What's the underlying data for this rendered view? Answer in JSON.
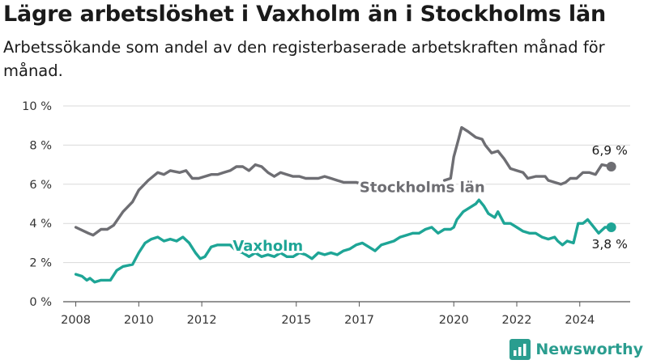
{
  "header": {
    "title": "Lägre arbetslöshet i Vaxholm än i Stockholms län",
    "subtitle": "Arbetssökande som andel av den registerbaserade arbetskraften månad för månad."
  },
  "brand": {
    "name": "Newsworthy",
    "color": "#2a9d8f"
  },
  "chart_data": {
    "type": "line",
    "title": "Lägre arbetslöshet i Vaxholm än i Stockholms län",
    "subtitle": "Arbetssökande som andel av den registerbaserade arbetskraften månad för månad.",
    "xlabel": "",
    "ylabel": "",
    "xlim": [
      2007.6,
      2025.6
    ],
    "ylim": [
      0,
      10
    ],
    "x_ticks": [
      2008,
      2010,
      2012,
      2015,
      2017,
      2020,
      2022,
      2024
    ],
    "y_ticks": [
      0,
      2,
      4,
      6,
      8,
      10
    ],
    "y_tick_labels": [
      "0 %",
      "2 %",
      "4 %",
      "6 %",
      "8 %",
      "10 %"
    ],
    "grid": "horizontal",
    "series": [
      {
        "name": "Stockholms län",
        "color": "#6e6e73",
        "end_label": "6,9 %",
        "points": [
          [
            2008.0,
            3.8
          ],
          [
            2008.4,
            3.5
          ],
          [
            2008.55,
            3.4
          ],
          [
            2008.8,
            3.7
          ],
          [
            2009.0,
            3.7
          ],
          [
            2009.2,
            3.9
          ],
          [
            2009.5,
            4.6
          ],
          [
            2009.8,
            5.1
          ],
          [
            2010.0,
            5.7
          ],
          [
            2010.3,
            6.2
          ],
          [
            2010.6,
            6.6
          ],
          [
            2010.8,
            6.5
          ],
          [
            2011.0,
            6.7
          ],
          [
            2011.3,
            6.6
          ],
          [
            2011.5,
            6.7
          ],
          [
            2011.7,
            6.3
          ],
          [
            2011.9,
            6.3
          ],
          [
            2012.1,
            6.4
          ],
          [
            2012.3,
            6.5
          ],
          [
            2012.5,
            6.5
          ],
          [
            2012.7,
            6.6
          ],
          [
            2012.9,
            6.7
          ],
          [
            2013.1,
            6.9
          ],
          [
            2013.3,
            6.9
          ],
          [
            2013.5,
            6.7
          ],
          [
            2013.7,
            7.0
          ],
          [
            2013.9,
            6.9
          ],
          [
            2014.1,
            6.6
          ],
          [
            2014.3,
            6.4
          ],
          [
            2014.5,
            6.6
          ],
          [
            2014.7,
            6.5
          ],
          [
            2014.9,
            6.4
          ],
          [
            2015.1,
            6.4
          ],
          [
            2015.3,
            6.3
          ],
          [
            2015.5,
            6.3
          ],
          [
            2015.7,
            6.3
          ],
          [
            2015.9,
            6.4
          ],
          [
            2016.1,
            6.3
          ],
          [
            2016.3,
            6.2
          ],
          [
            2016.5,
            6.1
          ],
          [
            2016.7,
            6.1
          ],
          [
            2016.9,
            6.1
          ],
          [
            2017.1,
            6.0
          ],
          [
            2019.7,
            6.2
          ],
          [
            2019.9,
            6.3
          ],
          [
            2020.0,
            7.4
          ],
          [
            2020.15,
            8.3
          ],
          [
            2020.25,
            8.9
          ],
          [
            2020.45,
            8.7
          ],
          [
            2020.7,
            8.4
          ],
          [
            2020.9,
            8.3
          ],
          [
            2021.0,
            8.0
          ],
          [
            2021.2,
            7.6
          ],
          [
            2021.4,
            7.7
          ],
          [
            2021.6,
            7.3
          ],
          [
            2021.8,
            6.8
          ],
          [
            2022.0,
            6.7
          ],
          [
            2022.2,
            6.6
          ],
          [
            2022.35,
            6.3
          ],
          [
            2022.6,
            6.4
          ],
          [
            2022.9,
            6.4
          ],
          [
            2023.0,
            6.2
          ],
          [
            2023.2,
            6.1
          ],
          [
            2023.4,
            6.0
          ],
          [
            2023.55,
            6.1
          ],
          [
            2023.7,
            6.3
          ],
          [
            2023.9,
            6.3
          ],
          [
            2024.1,
            6.6
          ],
          [
            2024.3,
            6.6
          ],
          [
            2024.5,
            6.5
          ],
          [
            2024.7,
            7.0
          ],
          [
            2025.0,
            6.9
          ]
        ]
      },
      {
        "name": "Vaxholm",
        "color": "#1ea596",
        "end_label": "3,8 %",
        "points": [
          [
            2008.0,
            1.4
          ],
          [
            2008.2,
            1.3
          ],
          [
            2008.35,
            1.1
          ],
          [
            2008.45,
            1.2
          ],
          [
            2008.6,
            1.0
          ],
          [
            2008.8,
            1.1
          ],
          [
            2009.1,
            1.1
          ],
          [
            2009.3,
            1.6
          ],
          [
            2009.5,
            1.8
          ],
          [
            2009.8,
            1.9
          ],
          [
            2010.0,
            2.5
          ],
          [
            2010.2,
            3.0
          ],
          [
            2010.4,
            3.2
          ],
          [
            2010.6,
            3.3
          ],
          [
            2010.8,
            3.1
          ],
          [
            2011.0,
            3.2
          ],
          [
            2011.2,
            3.1
          ],
          [
            2011.4,
            3.3
          ],
          [
            2011.6,
            3.0
          ],
          [
            2011.8,
            2.5
          ],
          [
            2011.95,
            2.2
          ],
          [
            2012.1,
            2.3
          ],
          [
            2012.3,
            2.8
          ],
          [
            2012.5,
            2.9
          ],
          [
            2012.7,
            2.9
          ],
          [
            2012.9,
            2.9
          ],
          [
            2013.1,
            2.6
          ],
          [
            2013.3,
            2.5
          ],
          [
            2013.5,
            2.3
          ],
          [
            2013.7,
            2.5
          ],
          [
            2013.9,
            2.3
          ],
          [
            2014.1,
            2.4
          ],
          [
            2014.3,
            2.3
          ],
          [
            2014.5,
            2.5
          ],
          [
            2014.7,
            2.3
          ],
          [
            2014.9,
            2.3
          ],
          [
            2015.1,
            2.5
          ],
          [
            2015.3,
            2.4
          ],
          [
            2015.5,
            2.2
          ],
          [
            2015.7,
            2.5
          ],
          [
            2015.9,
            2.4
          ],
          [
            2016.1,
            2.5
          ],
          [
            2016.3,
            2.4
          ],
          [
            2016.5,
            2.6
          ],
          [
            2016.7,
            2.7
          ],
          [
            2016.9,
            2.9
          ],
          [
            2017.1,
            3.0
          ],
          [
            2017.3,
            2.8
          ],
          [
            2017.5,
            2.6
          ],
          [
            2017.7,
            2.9
          ],
          [
            2017.9,
            3.0
          ],
          [
            2018.1,
            3.1
          ],
          [
            2018.3,
            3.3
          ],
          [
            2018.5,
            3.4
          ],
          [
            2018.7,
            3.5
          ],
          [
            2018.9,
            3.5
          ],
          [
            2019.1,
            3.7
          ],
          [
            2019.3,
            3.8
          ],
          [
            2019.5,
            3.5
          ],
          [
            2019.7,
            3.7
          ],
          [
            2019.9,
            3.7
          ],
          [
            2020.0,
            3.8
          ],
          [
            2020.1,
            4.2
          ],
          [
            2020.3,
            4.6
          ],
          [
            2020.5,
            4.8
          ],
          [
            2020.7,
            5.0
          ],
          [
            2020.8,
            5.2
          ],
          [
            2020.95,
            4.9
          ],
          [
            2021.1,
            4.5
          ],
          [
            2021.3,
            4.3
          ],
          [
            2021.4,
            4.6
          ],
          [
            2021.6,
            4.0
          ],
          [
            2021.8,
            4.0
          ],
          [
            2022.0,
            3.8
          ],
          [
            2022.2,
            3.6
          ],
          [
            2022.4,
            3.5
          ],
          [
            2022.6,
            3.5
          ],
          [
            2022.8,
            3.3
          ],
          [
            2023.0,
            3.2
          ],
          [
            2023.2,
            3.3
          ],
          [
            2023.3,
            3.1
          ],
          [
            2023.45,
            2.9
          ],
          [
            2023.6,
            3.1
          ],
          [
            2023.8,
            3.0
          ],
          [
            2023.95,
            4.0
          ],
          [
            2024.1,
            4.0
          ],
          [
            2024.25,
            4.2
          ],
          [
            2024.4,
            3.9
          ],
          [
            2024.6,
            3.5
          ],
          [
            2024.8,
            3.8
          ],
          [
            2025.0,
            3.8
          ]
        ]
      }
    ],
    "annotations": [
      {
        "text": "Stockholms län",
        "series": "Stockholms län",
        "x": 2019.0,
        "y": 5.85
      },
      {
        "text": "Vaxholm",
        "series": "Vaxholm",
        "x": 2014.1,
        "y": 2.85
      }
    ]
  }
}
